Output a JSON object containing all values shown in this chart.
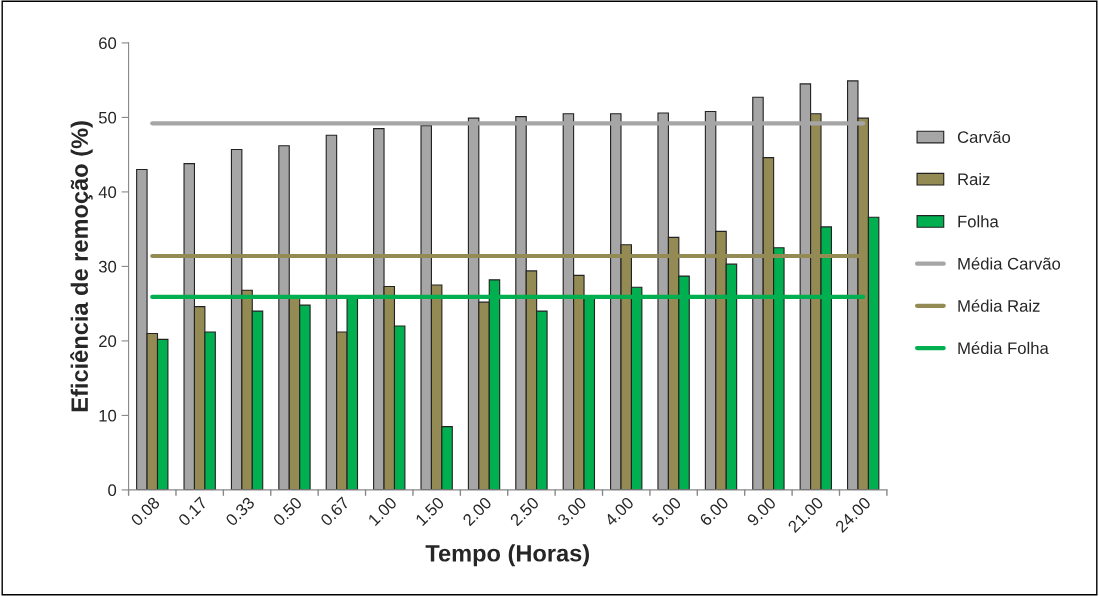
{
  "chart_data": {
    "type": "bar",
    "xlabel": "Tempo (Horas)",
    "ylabel": "Eficiência de remoção (%)",
    "categories": [
      "0.08",
      "0.17",
      "0.33",
      "0.50",
      "0.67",
      "1.00",
      "1.50",
      "2.00",
      "2.50",
      "3.00",
      "4.00",
      "5.00",
      "6.00",
      "9.00",
      "21.00",
      "24.00"
    ],
    "series": [
      {
        "name": "Carvão",
        "color": "#a6a6a6",
        "values": [
          43,
          43.8,
          45.7,
          46.2,
          47.6,
          48.5,
          48.9,
          49.9,
          50.1,
          50.5,
          50.5,
          50.6,
          50.8,
          52.7,
          54.5,
          54.9
        ]
      },
      {
        "name": "Raiz",
        "color": "#948a54",
        "values": [
          21,
          24.6,
          26.8,
          25.9,
          21.2,
          27.3,
          27.5,
          25.2,
          29.4,
          28.8,
          32.9,
          33.9,
          34.7,
          44.6,
          50.5,
          49.9
        ]
      },
      {
        "name": "Folha",
        "color": "#00b050",
        "values": [
          20.2,
          21.2,
          24.0,
          24.8,
          25.9,
          22.0,
          8.5,
          28.2,
          24.0,
          25.9,
          27.2,
          28.7,
          30.3,
          32.5,
          35.3,
          36.6
        ]
      },
      {
        "name": "Média Carvão",
        "type": "line",
        "color": "#a6a6a6",
        "values": [
          49.2,
          49.2,
          49.2,
          49.2,
          49.2,
          49.2,
          49.2,
          49.2,
          49.2,
          49.2,
          49.2,
          49.2,
          49.2,
          49.2,
          49.2,
          49.2
        ]
      },
      {
        "name": "Média Raiz",
        "type": "line",
        "color": "#948a54",
        "values": [
          31.4,
          31.4,
          31.4,
          31.4,
          31.4,
          31.4,
          31.4,
          31.4,
          31.4,
          31.4,
          31.4,
          31.4,
          31.4,
          31.4,
          31.4,
          31.4
        ]
      },
      {
        "name": "Média Folha",
        "type": "line",
        "color": "#00b050",
        "values": [
          25.9,
          25.9,
          25.9,
          25.9,
          25.9,
          25.9,
          25.9,
          25.9,
          25.9,
          25.9,
          25.9,
          25.9,
          25.9,
          25.9,
          25.9,
          25.9
        ]
      }
    ],
    "ylim": [
      0,
      60
    ],
    "yticks": [
      0,
      10,
      20,
      30,
      40,
      50,
      60
    ],
    "grid": false,
    "legend": "right",
    "marker": "none",
    "line_style": "solid"
  }
}
